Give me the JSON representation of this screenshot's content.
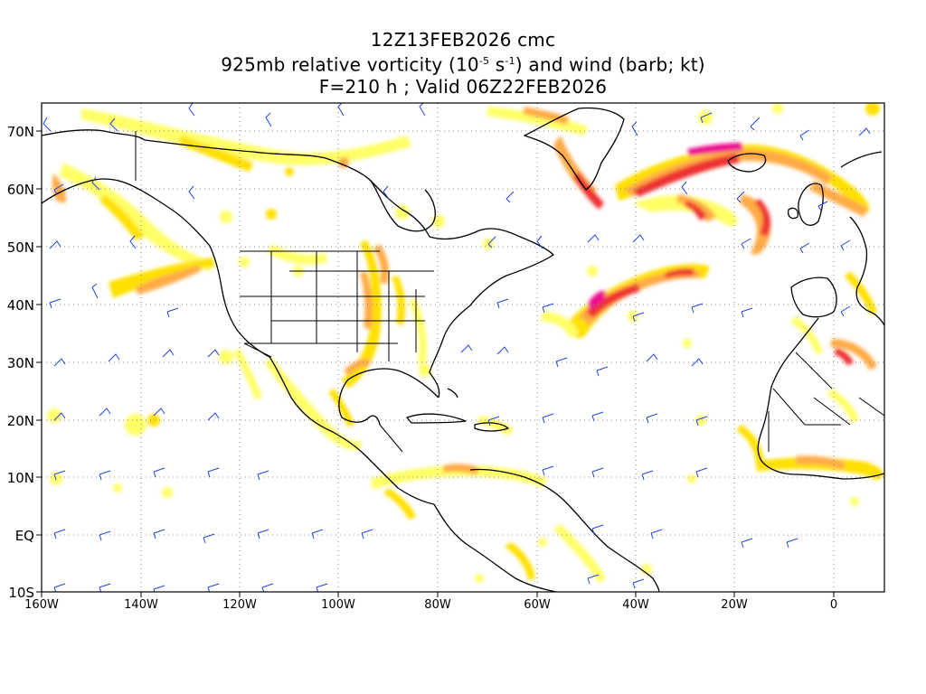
{
  "header": {
    "line1": "12Z13FEB2026 cmc",
    "line2_prefix": "925mb relative vorticity (10",
    "line2_exp1": "-5",
    "line2_mid": " s",
    "line2_exp2": "-1",
    "line2_suffix": ") and wind (barb; kt)",
    "line3": "F=210 h ; Valid 06Z22FEB2026"
  },
  "axes": {
    "lat_labels": [
      "70N",
      "60N",
      "50N",
      "40N",
      "30N",
      "20N",
      "10N",
      "EQ",
      "10S"
    ],
    "lon_labels": [
      "160W",
      "140W",
      "120W",
      "100W",
      "80W",
      "60W",
      "40W",
      "20W",
      "0"
    ]
  },
  "colors": {
    "shade_light": "#ffff66",
    "shade_yellow": "#ffe000",
    "shade_orange": "#ffaa44",
    "shade_red": "#ee3030",
    "shade_magenta": "#ee1090",
    "barb": "#2244dd",
    "grid": "#888888",
    "coast": "#000000"
  },
  "legend_icons": {
    "barb_icon": "wind-barb-icon"
  }
}
